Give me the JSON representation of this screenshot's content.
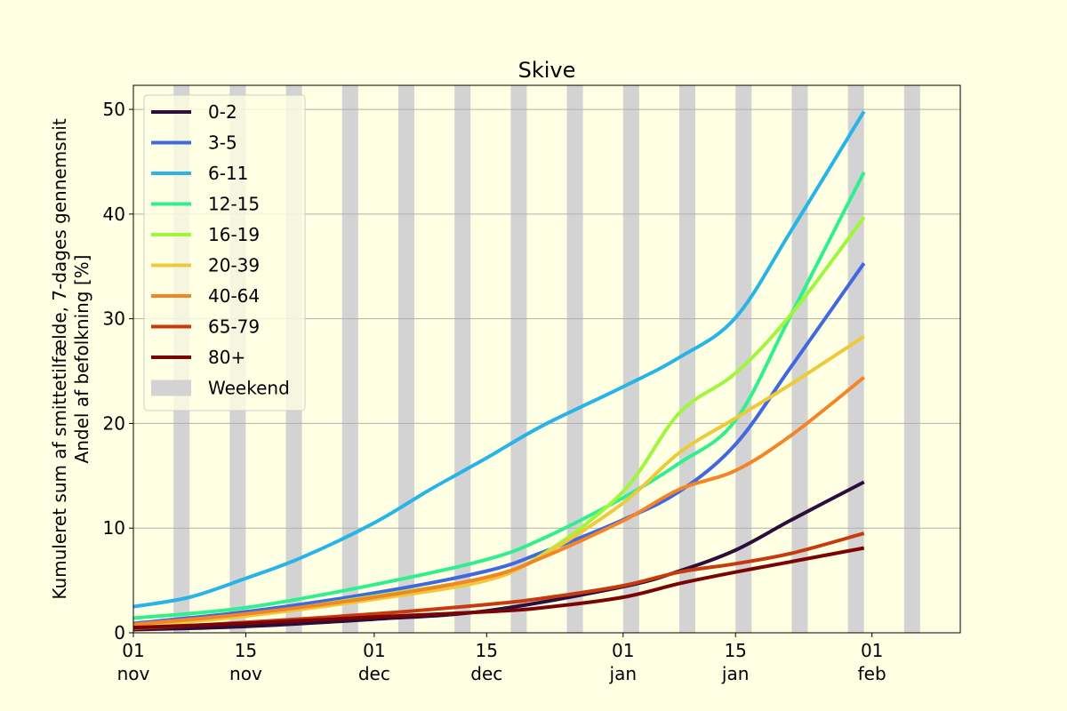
{
  "chart_data": {
    "type": "line",
    "title": "Skive",
    "ylabel_line1": "Kumuleret sum af smittetilfælde, 7-dages gennemsnit",
    "ylabel_line2": "Andel af befolkning [%]",
    "xlabel": "",
    "ylim": [
      0,
      52.3
    ],
    "x_range": [
      "2021-11-01",
      "2022-02-12"
    ],
    "grid": "horizontal",
    "legend_position": "upper-left",
    "background_color": "#ffffe3",
    "weekend_color": "#d3d3d3",
    "weekend_label": "Weekend",
    "weekends": [
      [
        "2021-11-06",
        "2021-11-08"
      ],
      [
        "2021-11-13",
        "2021-11-15"
      ],
      [
        "2021-11-20",
        "2021-11-22"
      ],
      [
        "2021-11-27",
        "2021-11-29"
      ],
      [
        "2021-12-04",
        "2021-12-06"
      ],
      [
        "2021-12-11",
        "2021-12-13"
      ],
      [
        "2021-12-18",
        "2021-12-20"
      ],
      [
        "2021-12-25",
        "2021-12-27"
      ],
      [
        "2022-01-01",
        "2022-01-03"
      ],
      [
        "2022-01-08",
        "2022-01-10"
      ],
      [
        "2022-01-15",
        "2022-01-17"
      ],
      [
        "2022-01-22",
        "2022-01-24"
      ],
      [
        "2022-01-29",
        "2022-01-31"
      ],
      [
        "2022-02-05",
        "2022-02-07"
      ]
    ],
    "x_ticks": [
      {
        "date": "2021-11-01",
        "day": "01",
        "month": "nov"
      },
      {
        "date": "2021-11-15",
        "day": "15",
        "month": "nov"
      },
      {
        "date": "2021-12-01",
        "day": "01",
        "month": "dec"
      },
      {
        "date": "2021-12-15",
        "day": "15",
        "month": "dec"
      },
      {
        "date": "2022-01-01",
        "day": "01",
        "month": "jan"
      },
      {
        "date": "2022-01-15",
        "day": "15",
        "month": "jan"
      },
      {
        "date": "2022-02-01",
        "day": "01",
        "month": "feb"
      }
    ],
    "y_ticks": [
      0,
      10,
      20,
      30,
      40,
      50
    ],
    "series": [
      {
        "name": "0-2",
        "color": "#2d0d3b",
        "x": [
          "2021-11-01",
          "2021-11-15",
          "2021-12-01",
          "2021-12-15",
          "2022-01-01",
          "2022-01-08",
          "2022-01-15",
          "2022-01-22",
          "2022-01-31"
        ],
        "y": [
          0.3,
          0.6,
          1.3,
          2.1,
          4.4,
          5.9,
          7.9,
          10.8,
          14.4
        ]
      },
      {
        "name": "3-5",
        "color": "#4168e0",
        "x": [
          "2021-11-01",
          "2021-11-15",
          "2021-12-01",
          "2021-12-15",
          "2021-12-22",
          "2022-01-01",
          "2022-01-08",
          "2022-01-15",
          "2022-01-22",
          "2022-01-31"
        ],
        "y": [
          0.9,
          2.0,
          3.8,
          5.9,
          7.7,
          10.8,
          13.5,
          18.0,
          25.5,
          35.3
        ]
      },
      {
        "name": "6-11",
        "color": "#28b4e6",
        "x": [
          "2021-11-01",
          "2021-11-08",
          "2021-11-15",
          "2021-11-22",
          "2021-12-01",
          "2021-12-08",
          "2021-12-15",
          "2021-12-22",
          "2022-01-01",
          "2022-01-08",
          "2022-01-15",
          "2022-01-22",
          "2022-01-31"
        ],
        "y": [
          2.5,
          3.4,
          5.2,
          7.2,
          10.5,
          13.7,
          16.7,
          19.8,
          23.5,
          26.3,
          30.1,
          38.5,
          49.8
        ]
      },
      {
        "name": "12-15",
        "color": "#31ef8e",
        "x": [
          "2021-11-01",
          "2021-11-15",
          "2021-12-01",
          "2021-12-15",
          "2021-12-22",
          "2022-01-01",
          "2022-01-08",
          "2022-01-15",
          "2022-01-22",
          "2022-01-31"
        ],
        "y": [
          1.4,
          2.4,
          4.6,
          7.0,
          9.0,
          12.9,
          16.2,
          20.3,
          30.5,
          44.0
        ]
      },
      {
        "name": "16-19",
        "color": "#a2f53d",
        "x": [
          "2021-11-01",
          "2021-11-15",
          "2021-12-01",
          "2021-12-15",
          "2021-12-22",
          "2022-01-01",
          "2022-01-08",
          "2022-01-15",
          "2022-01-22",
          "2022-01-31"
        ],
        "y": [
          0.7,
          1.7,
          3.5,
          5.3,
          7.5,
          13.5,
          21.0,
          24.8,
          30.5,
          39.7
        ]
      },
      {
        "name": "20-39",
        "color": "#ecca3c",
        "x": [
          "2021-11-01",
          "2021-11-15",
          "2021-12-01",
          "2021-12-15",
          "2021-12-22",
          "2022-01-01",
          "2022-01-08",
          "2022-01-15",
          "2022-01-22",
          "2022-01-31"
        ],
        "y": [
          0.6,
          1.6,
          3.2,
          5.0,
          7.4,
          12.4,
          17.2,
          20.5,
          23.8,
          28.3
        ]
      },
      {
        "name": "40-64",
        "color": "#f48527",
        "x": [
          "2021-11-01",
          "2021-11-15",
          "2021-12-01",
          "2021-12-15",
          "2021-12-22",
          "2022-01-01",
          "2022-01-08",
          "2022-01-15",
          "2022-01-22",
          "2022-01-31"
        ],
        "y": [
          0.8,
          1.8,
          3.4,
          5.3,
          7.2,
          10.7,
          13.7,
          15.5,
          18.9,
          24.4
        ]
      },
      {
        "name": "65-79",
        "color": "#c73a0d",
        "x": [
          "2021-11-01",
          "2021-11-15",
          "2021-12-01",
          "2021-12-15",
          "2021-12-22",
          "2022-01-01",
          "2022-01-08",
          "2022-01-15",
          "2022-01-22",
          "2022-01-31"
        ],
        "y": [
          0.4,
          1.0,
          1.8,
          2.7,
          3.3,
          4.5,
          5.8,
          6.6,
          7.6,
          9.5
        ]
      },
      {
        "name": "80+",
        "color": "#7a0403",
        "x": [
          "2021-11-01",
          "2021-11-15",
          "2021-12-01",
          "2021-12-15",
          "2021-12-22",
          "2022-01-01",
          "2022-01-08",
          "2022-01-15",
          "2022-01-22",
          "2022-01-31"
        ],
        "y": [
          0.5,
          0.9,
          1.5,
          2.0,
          2.4,
          3.4,
          4.7,
          5.8,
          6.8,
          8.1
        ]
      }
    ]
  }
}
